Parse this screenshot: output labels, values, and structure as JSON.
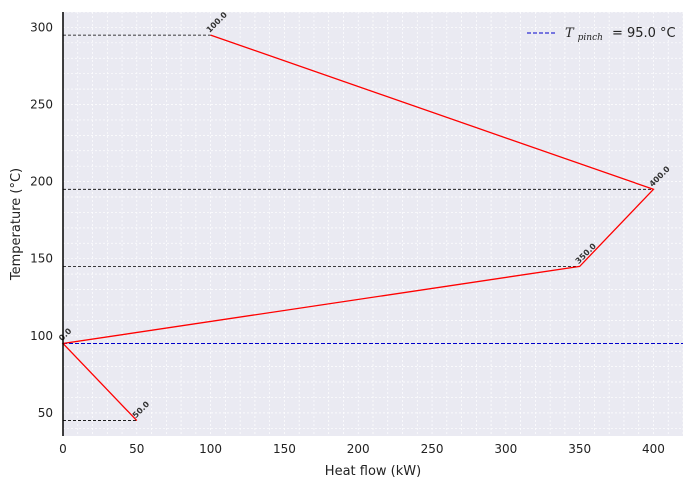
{
  "chart_data": {
    "type": "line",
    "xlabel": "Heat flow (kW)",
    "ylabel": "Temperature (°C)",
    "xlim": [
      0,
      420
    ],
    "ylim": [
      35,
      310
    ],
    "xticks": [
      0,
      50,
      100,
      150,
      200,
      250,
      300,
      350,
      400
    ],
    "yticks": [
      50,
      100,
      150,
      200,
      250,
      300
    ],
    "grid": true,
    "legend_placement": "top-right",
    "curve": {
      "color": "#ff0000",
      "points": [
        {
          "x": 50,
          "y": 45,
          "label": "50.0"
        },
        {
          "x": 0,
          "y": 95,
          "label": "0.0"
        },
        {
          "x": 350,
          "y": 145,
          "label": "350.0"
        },
        {
          "x": 400,
          "y": 195,
          "label": "400.0"
        },
        {
          "x": 100,
          "y": 295,
          "label": "100.0"
        }
      ]
    },
    "interval_lines": [
      45,
      145,
      195,
      295
    ],
    "pinch": {
      "value": 95,
      "color": "#0000cc",
      "legend_symbol": "T",
      "legend_subscript": "pinch",
      "legend_value_text": "= 95.0 °C"
    }
  }
}
